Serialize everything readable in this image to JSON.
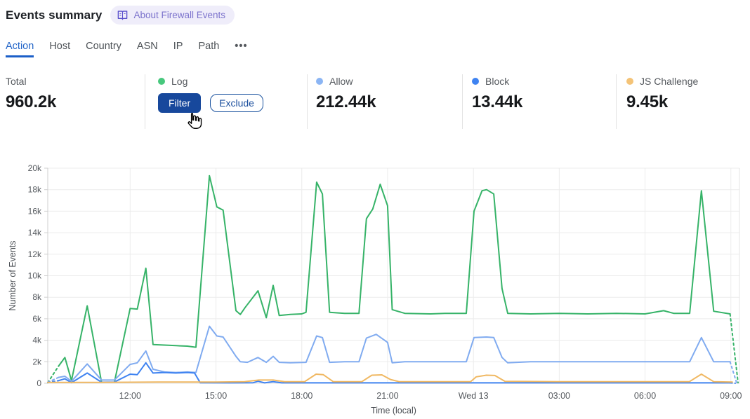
{
  "header": {
    "title": "Events summary",
    "badge": {
      "label": "About Firewall Events",
      "icon": "open-book-icon"
    }
  },
  "tabs": {
    "items": [
      {
        "label": "Action",
        "active": true
      },
      {
        "label": "Host",
        "active": false
      },
      {
        "label": "Country",
        "active": false
      },
      {
        "label": "ASN",
        "active": false
      },
      {
        "label": "IP",
        "active": false
      },
      {
        "label": "Path",
        "active": false
      },
      {
        "label": "•••",
        "active": false
      }
    ]
  },
  "stats": {
    "columns": [
      {
        "label": "Total",
        "value": "960.2k"
      },
      {
        "label": "Log",
        "dot_color": "#47c87d",
        "buttons": [
          {
            "label": "Filter"
          },
          {
            "label": "Exclude"
          }
        ]
      },
      {
        "label": "Allow",
        "dot_color": "#8bb5f4",
        "value": "212.44k"
      },
      {
        "label": "Block",
        "dot_color": "#3f83f1",
        "value": "13.44k"
      },
      {
        "label": "JS Challenge",
        "dot_color": "#f4c377",
        "value": "9.45k"
      }
    ]
  },
  "cursor": {
    "type": "hand-pointer",
    "over": "filter-button"
  },
  "chart_data": {
    "type": "line",
    "title": "",
    "xlabel": "Time (local)",
    "ylabel": "Number of Events",
    "x_unit_note": "decimal hours local time; values >= 24 are the next day (Wed 13)",
    "values_unit": "thousands of events (k)",
    "xlim": [
      9.12,
      33.3
    ],
    "ylim": [
      0,
      20000
    ],
    "grid": true,
    "legend_position": "stats-row-above-chart",
    "yticks": [
      {
        "v": 0,
        "label": "0"
      },
      {
        "v": 2,
        "label": "2k"
      },
      {
        "v": 4,
        "label": "4k"
      },
      {
        "v": 6,
        "label": "6k"
      },
      {
        "v": 8,
        "label": "8k"
      },
      {
        "v": 10,
        "label": "10k"
      },
      {
        "v": 12,
        "label": "12k"
      },
      {
        "v": 14,
        "label": "14k"
      },
      {
        "v": 16,
        "label": "16k"
      },
      {
        "v": 18,
        "label": "18k"
      },
      {
        "v": 20,
        "label": "20k"
      }
    ],
    "xticks": [
      {
        "h": 12,
        "label": "12:00"
      },
      {
        "h": 15,
        "label": "15:00"
      },
      {
        "h": 18,
        "label": "18:00"
      },
      {
        "h": 21,
        "label": "21:00"
      },
      {
        "h": 24,
        "label": "Wed 13"
      },
      {
        "h": 27,
        "label": "03:00"
      },
      {
        "h": 30,
        "label": "06:00"
      },
      {
        "h": 33,
        "label": "09:00"
      }
    ],
    "series": [
      {
        "name": "Log",
        "color": "#36b368",
        "dashed_head": [
          [
            9.12,
            0.05
          ],
          [
            9.5,
            1.6
          ]
        ],
        "points": [
          [
            9.5,
            1.6
          ],
          [
            9.72,
            2.4
          ],
          [
            9.95,
            0.25
          ],
          [
            10.5,
            7.2
          ],
          [
            11.0,
            0.1
          ],
          [
            11.45,
            0.1
          ],
          [
            12.0,
            6.95
          ],
          [
            12.25,
            6.9
          ],
          [
            12.55,
            10.7
          ],
          [
            12.8,
            3.6
          ],
          [
            13.2,
            3.55
          ],
          [
            13.6,
            3.5
          ],
          [
            14.0,
            3.45
          ],
          [
            14.3,
            3.35
          ],
          [
            14.77,
            19.3
          ],
          [
            15.03,
            16.4
          ],
          [
            15.25,
            16.1
          ],
          [
            15.7,
            6.75
          ],
          [
            15.85,
            6.4
          ],
          [
            16.02,
            7.05
          ],
          [
            16.47,
            8.6
          ],
          [
            16.76,
            6.1
          ],
          [
            17.0,
            9.1
          ],
          [
            17.21,
            6.3
          ],
          [
            17.6,
            6.4
          ],
          [
            18.0,
            6.45
          ],
          [
            18.15,
            6.6
          ],
          [
            18.52,
            18.7
          ],
          [
            18.72,
            17.6
          ],
          [
            18.97,
            6.6
          ],
          [
            19.5,
            6.5
          ],
          [
            20.0,
            6.5
          ],
          [
            20.26,
            15.3
          ],
          [
            20.48,
            16.2
          ],
          [
            20.74,
            18.5
          ],
          [
            21.0,
            16.5
          ],
          [
            21.16,
            6.85
          ],
          [
            21.6,
            6.5
          ],
          [
            22.5,
            6.45
          ],
          [
            23.0,
            6.5
          ],
          [
            23.75,
            6.5
          ],
          [
            24.02,
            16.0
          ],
          [
            24.3,
            17.9
          ],
          [
            24.46,
            18.0
          ],
          [
            24.71,
            17.6
          ],
          [
            25.0,
            8.8
          ],
          [
            25.2,
            6.5
          ],
          [
            26.0,
            6.45
          ],
          [
            27.0,
            6.5
          ],
          [
            28.0,
            6.45
          ],
          [
            29.0,
            6.5
          ],
          [
            30.0,
            6.45
          ],
          [
            30.65,
            6.75
          ],
          [
            31.0,
            6.5
          ],
          [
            31.56,
            6.5
          ],
          [
            31.97,
            17.9
          ],
          [
            32.4,
            6.7
          ],
          [
            32.97,
            6.45
          ]
        ],
        "dashed_tail": [
          [
            32.97,
            6.45
          ],
          [
            33.25,
            0.05
          ]
        ]
      },
      {
        "name": "Allow",
        "color": "#80abf0",
        "stat_value": "212.44k",
        "dashed_head": [
          [
            9.12,
            0.1
          ],
          [
            9.5,
            0.55
          ]
        ],
        "points": [
          [
            9.5,
            0.55
          ],
          [
            9.72,
            0.65
          ],
          [
            9.95,
            0.18
          ],
          [
            10.5,
            1.8
          ],
          [
            11.0,
            0.3
          ],
          [
            11.45,
            0.3
          ],
          [
            12.0,
            1.75
          ],
          [
            12.25,
            1.9
          ],
          [
            12.55,
            3.0
          ],
          [
            12.8,
            1.3
          ],
          [
            13.2,
            1.05
          ],
          [
            13.6,
            1.0
          ],
          [
            14.0,
            1.05
          ],
          [
            14.3,
            1.0
          ],
          [
            14.77,
            5.3
          ],
          [
            15.03,
            4.4
          ],
          [
            15.25,
            4.3
          ],
          [
            15.7,
            2.5
          ],
          [
            15.85,
            2.0
          ],
          [
            16.1,
            1.95
          ],
          [
            16.47,
            2.4
          ],
          [
            16.76,
            1.95
          ],
          [
            17.0,
            2.5
          ],
          [
            17.21,
            1.95
          ],
          [
            17.6,
            1.9
          ],
          [
            18.15,
            1.95
          ],
          [
            18.52,
            4.4
          ],
          [
            18.72,
            4.25
          ],
          [
            18.97,
            1.95
          ],
          [
            19.5,
            2.0
          ],
          [
            20.0,
            2.0
          ],
          [
            20.26,
            4.2
          ],
          [
            20.6,
            4.55
          ],
          [
            21.0,
            3.8
          ],
          [
            21.16,
            1.9
          ],
          [
            21.6,
            2.0
          ],
          [
            23.0,
            2.0
          ],
          [
            23.75,
            2.0
          ],
          [
            24.02,
            4.25
          ],
          [
            24.46,
            4.3
          ],
          [
            24.71,
            4.25
          ],
          [
            25.0,
            2.4
          ],
          [
            25.2,
            1.9
          ],
          [
            26.0,
            2.0
          ],
          [
            28.0,
            2.0
          ],
          [
            30.0,
            2.0
          ],
          [
            31.56,
            2.0
          ],
          [
            31.97,
            4.25
          ],
          [
            32.4,
            2.0
          ],
          [
            32.97,
            2.0
          ]
        ],
        "dashed_tail": [
          [
            32.97,
            2.0
          ],
          [
            33.2,
            0.05
          ]
        ]
      },
      {
        "name": "Block",
        "color": "#3f83f1",
        "stat_value": "13.44k",
        "dashed_head": [
          [
            9.12,
            0.08
          ],
          [
            9.5,
            0.25
          ]
        ],
        "points": [
          [
            9.5,
            0.25
          ],
          [
            9.72,
            0.42
          ],
          [
            9.95,
            0.06
          ],
          [
            10.5,
            0.95
          ],
          [
            11.0,
            0.1
          ],
          [
            11.45,
            0.12
          ],
          [
            12.0,
            0.85
          ],
          [
            12.25,
            0.8
          ],
          [
            12.55,
            1.9
          ],
          [
            12.8,
            0.95
          ],
          [
            13.2,
            1.0
          ],
          [
            13.6,
            0.95
          ],
          [
            14.0,
            1.0
          ],
          [
            14.25,
            0.95
          ],
          [
            14.45,
            0.05
          ],
          [
            15.5,
            0.04
          ],
          [
            16.3,
            0.05
          ],
          [
            16.47,
            0.18
          ],
          [
            16.7,
            0.04
          ],
          [
            17.0,
            0.15
          ],
          [
            17.3,
            0.04
          ],
          [
            19.0,
            0.04
          ],
          [
            21.0,
            0.04
          ],
          [
            23.0,
            0.04
          ],
          [
            25.0,
            0.04
          ],
          [
            27.0,
            0.04
          ],
          [
            29.0,
            0.04
          ],
          [
            31.0,
            0.04
          ],
          [
            32.97,
            0.04
          ]
        ],
        "dashed_tail": [
          [
            32.97,
            0.04
          ],
          [
            33.15,
            0.0
          ]
        ]
      },
      {
        "name": "JS Challenge",
        "color": "#f0b862",
        "stat_value": "9.45k",
        "dashed_head": [],
        "points": [
          [
            9.12,
            0.08
          ],
          [
            10.0,
            0.08
          ],
          [
            11.0,
            0.08
          ],
          [
            12.0,
            0.1
          ],
          [
            13.0,
            0.12
          ],
          [
            14.0,
            0.12
          ],
          [
            15.0,
            0.12
          ],
          [
            16.0,
            0.15
          ],
          [
            16.5,
            0.3
          ],
          [
            17.0,
            0.3
          ],
          [
            17.4,
            0.15
          ],
          [
            18.1,
            0.15
          ],
          [
            18.5,
            0.85
          ],
          [
            18.75,
            0.8
          ],
          [
            19.1,
            0.15
          ],
          [
            20.1,
            0.15
          ],
          [
            20.45,
            0.75
          ],
          [
            20.8,
            0.78
          ],
          [
            21.1,
            0.35
          ],
          [
            21.4,
            0.15
          ],
          [
            23.9,
            0.15
          ],
          [
            24.1,
            0.6
          ],
          [
            24.45,
            0.75
          ],
          [
            24.75,
            0.72
          ],
          [
            25.1,
            0.18
          ],
          [
            27.0,
            0.15
          ],
          [
            29.0,
            0.15
          ],
          [
            31.55,
            0.15
          ],
          [
            31.97,
            0.85
          ],
          [
            32.4,
            0.15
          ],
          [
            33.05,
            0.12
          ]
        ],
        "dashed_tail": []
      }
    ]
  }
}
